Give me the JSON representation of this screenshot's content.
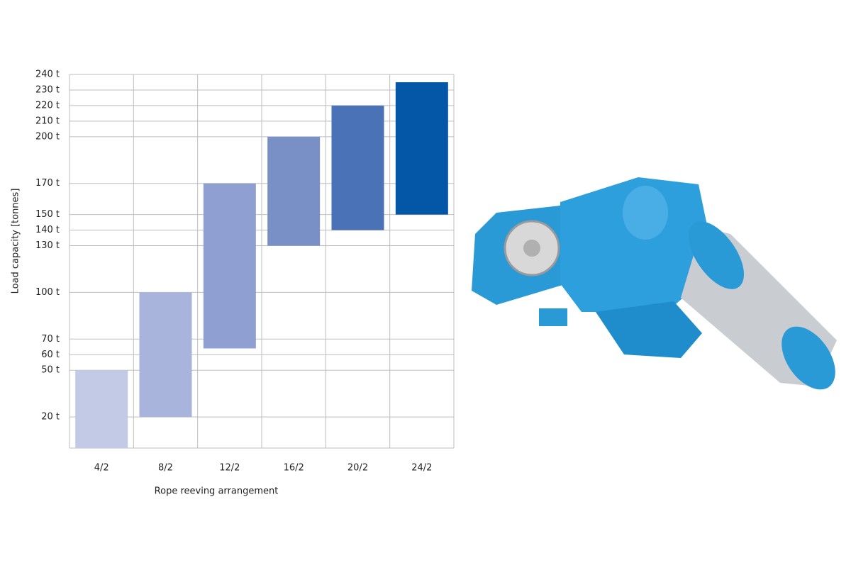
{
  "chart_data": {
    "type": "range-bar",
    "x_label": "Rope reeving arrangement",
    "y_label": "Load capacity [tonnes]",
    "categories": [
      "4/2",
      "8/2",
      "12/2",
      "16/2",
      "20/2",
      "24/2"
    ],
    "ranges": [
      [
        0,
        50
      ],
      [
        20,
        100
      ],
      [
        64,
        170
      ],
      [
        130,
        200
      ],
      [
        140,
        220
      ],
      [
        150,
        235
      ]
    ],
    "colors": [
      "#c3cae6",
      "#a9b4dc",
      "#8f9fd1",
      "#7890c6",
      "#4a72b7",
      "#0457a7"
    ],
    "ylim": [
      0,
      240
    ],
    "yticks": [
      {
        "value": 20,
        "label": "20 t"
      },
      {
        "value": 50,
        "label": "50 t"
      },
      {
        "value": 60,
        "label": "60 t"
      },
      {
        "value": 70,
        "label": "70 t"
      },
      {
        "value": 100,
        "label": "100 t"
      },
      {
        "value": 130,
        "label": "130 t"
      },
      {
        "value": 140,
        "label": "140 t"
      },
      {
        "value": 150,
        "label": "150 t"
      },
      {
        "value": 170,
        "label": "170 t"
      },
      {
        "value": 200,
        "label": "200 t"
      },
      {
        "value": 210,
        "label": "210 t"
      },
      {
        "value": 220,
        "label": "220 t"
      },
      {
        "value": 230,
        "label": "230 t"
      },
      {
        "value": 240,
        "label": "240 t"
      }
    ],
    "grid": true
  }
}
